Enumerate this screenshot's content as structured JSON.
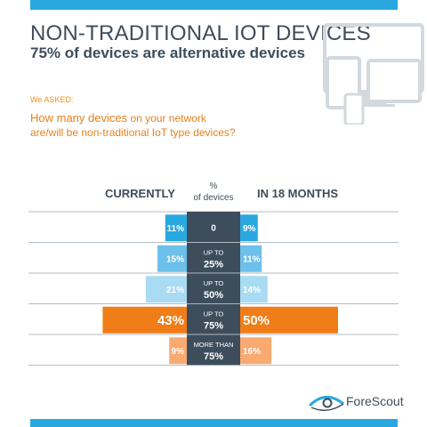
{
  "header": {
    "title": "NON-TRADITIONAL IOT DEVICES",
    "subtitle": "75% of devices are alternative devices"
  },
  "question": {
    "asked_label": "We ASKED:",
    "line1_prefix": "How many devices",
    "line1_suffix": " on your network",
    "line2": "are/will be non-traditional IoT type devices?"
  },
  "chart_data": {
    "type": "bar",
    "title": "",
    "left_heading": "CURRENTLY",
    "right_heading": "IN 18 MONTHS",
    "center_heading": [
      "%",
      "of devices"
    ],
    "categories": [
      [
        "0"
      ],
      [
        "UP TO",
        "25%"
      ],
      [
        "UP TO",
        "50%"
      ],
      [
        "UP TO",
        "75%"
      ],
      [
        "MORE THAN",
        "75%"
      ]
    ],
    "series": [
      {
        "name": "CURRENTLY",
        "values": [
          11,
          15,
          21,
          43,
          9
        ],
        "labels": [
          "11%",
          "15%",
          "21%",
          "43%",
          "9%"
        ]
      },
      {
        "name": "IN 18 MONTHS",
        "values": [
          9,
          11,
          14,
          50,
          16
        ],
        "labels": [
          "9%",
          "11%",
          "14%",
          "50%",
          "16%"
        ]
      }
    ],
    "bar_colors": [
      "#29a8e0",
      "#6cc0ea",
      "#a9dbf3",
      "#f07d18",
      "#f8aa70"
    ],
    "center_color": "#3d4d5c",
    "rule_color": "#9aa8b2",
    "unit": "%"
  },
  "footer": {
    "brand": "ForeScout",
    "brand_color": "#3d4d5c",
    "accent_color": "#29a8e0"
  },
  "icons": [
    "devices-illustration-icon",
    "forescout-eye-icon"
  ]
}
